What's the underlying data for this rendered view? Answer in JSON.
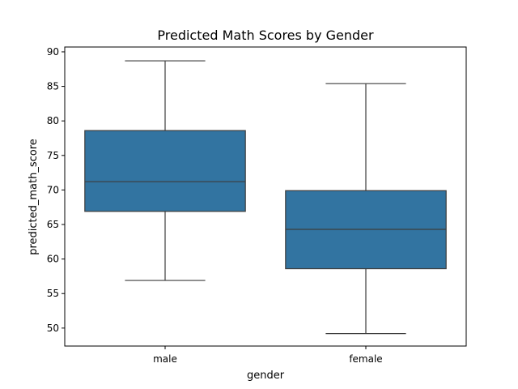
{
  "chart_data": {
    "type": "box",
    "title": "Predicted Math Scores by Gender",
    "xlabel": "gender",
    "ylabel": "predicted_math_score",
    "categories": [
      "male",
      "female"
    ],
    "ylim": [
      47.4,
      90.7
    ],
    "yticks": [
      50,
      55,
      60,
      65,
      70,
      75,
      80,
      85,
      90
    ],
    "grid": false,
    "box_color": "#3274a1",
    "line_color": "#3d3d3d",
    "boxes": [
      {
        "category": "male",
        "whisker_low": 56.9,
        "q1": 66.9,
        "median": 71.2,
        "q3": 78.6,
        "whisker_high": 88.7
      },
      {
        "category": "female",
        "whisker_low": 49.2,
        "q1": 58.6,
        "median": 64.3,
        "q3": 69.9,
        "whisker_high": 85.4
      }
    ]
  }
}
